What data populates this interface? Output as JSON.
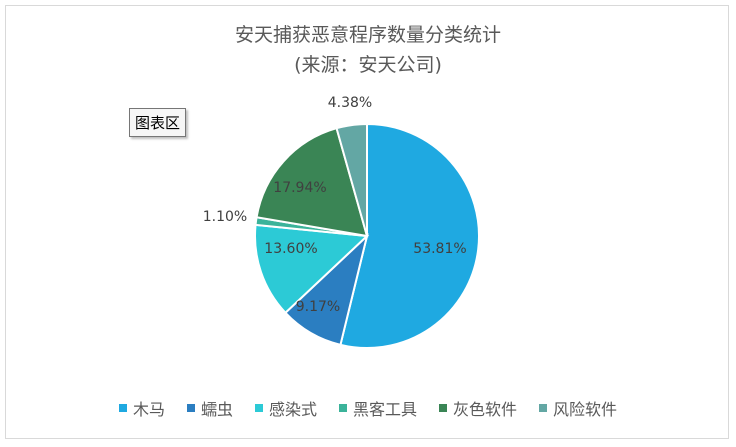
{
  "chart_title": {
    "line1": "安天捕获恶意程序数量分类统计",
    "line2": "(来源：安天公司)"
  },
  "tooltip": "图表区",
  "chart_data": {
    "type": "pie",
    "categories": [
      "木马",
      "蠕虫",
      "感染式",
      "黑客工具",
      "灰色软件",
      "风险软件"
    ],
    "values": [
      53.81,
      9.17,
      13.6,
      1.1,
      17.94,
      4.38
    ],
    "labels": [
      "53.81%",
      "9.17%",
      "13.60%",
      "1.10%",
      "17.94%",
      "4.38%"
    ],
    "colors": [
      "#1fa9e1",
      "#2b7ec1",
      "#2ccad6",
      "#3bb39a",
      "#3a8555",
      "#63a7a4"
    ],
    "legend_position": "bottom",
    "title": "安天捕获恶意程序数量分类统计 (来源：安天公司)"
  }
}
